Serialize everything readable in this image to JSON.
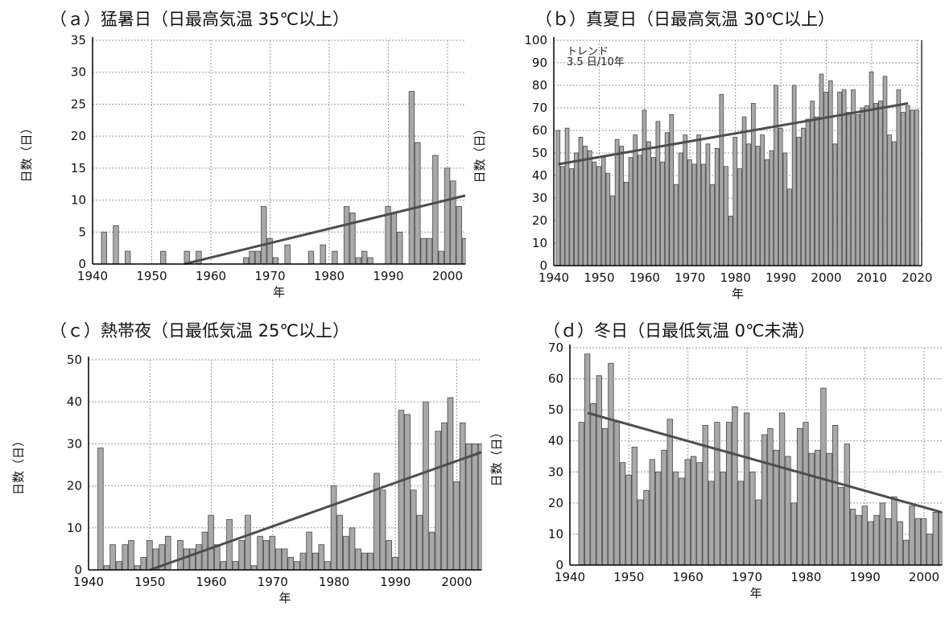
{
  "chart_data": [
    {
      "type": "bar",
      "title": "（ａ）猛暑日（日最高気温 35℃以上）",
      "xlabel": "年",
      "ylabel": "日数（日）",
      "xlim": [
        1940,
        2003
      ],
      "ylim": [
        0,
        35
      ],
      "xticks": [
        1940,
        1950,
        1960,
        1970,
        1980,
        1990,
        2000
      ],
      "yticks": [
        0,
        5,
        10,
        15,
        20,
        25,
        30,
        35
      ],
      "grid": true,
      "x": [
        1942,
        1944,
        1946,
        1952,
        1956,
        1958,
        1966,
        1967,
        1968,
        1969,
        1970,
        1971,
        1973,
        1977,
        1979,
        1981,
        1983,
        1984,
        1985,
        1986,
        1987,
        1990,
        1991,
        1992,
        1994,
        1995,
        1996,
        1997,
        1998,
        1999,
        2000,
        2001,
        2002,
        2003
      ],
      "values": [
        5,
        6,
        2,
        2,
        2,
        2,
        1,
        2,
        2,
        9,
        4,
        1,
        3,
        2,
        3,
        2,
        9,
        8,
        1,
        2,
        1,
        9,
        8,
        5,
        27,
        19,
        4,
        4,
        17,
        2,
        15,
        13,
        9,
        4
      ],
      "trend": {
        "x": [
          1955.5,
          2003
        ],
        "y": [
          0,
          10.7
        ]
      }
    },
    {
      "type": "bar",
      "title": "（ｂ）真夏日（日最高気温 30℃以上）",
      "xlabel": "年",
      "ylabel": "日数（日）",
      "xlim": [
        1940,
        2021
      ],
      "ylim": [
        0,
        100
      ],
      "xticks": [
        1940,
        1950,
        1960,
        1970,
        1980,
        1990,
        2000,
        2010,
        2020
      ],
      "yticks": [
        0,
        10,
        20,
        30,
        40,
        50,
        60,
        70,
        80,
        90,
        100
      ],
      "grid": true,
      "annotation": [
        "トレンド",
        "3.5 日/10年"
      ],
      "x": [
        1941,
        1942,
        1943,
        1944,
        1945,
        1946,
        1947,
        1948,
        1949,
        1950,
        1951,
        1952,
        1953,
        1954,
        1955,
        1956,
        1957,
        1958,
        1959,
        1960,
        1961,
        1962,
        1963,
        1964,
        1965,
        1966,
        1967,
        1968,
        1969,
        1970,
        1971,
        1972,
        1973,
        1974,
        1975,
        1976,
        1977,
        1978,
        1979,
        1980,
        1981,
        1982,
        1983,
        1984,
        1985,
        1986,
        1987,
        1988,
        1989,
        1990,
        1991,
        1992,
        1993,
        1994,
        1995,
        1996,
        1997,
        1998,
        1999,
        2000,
        2001,
        2002,
        2003,
        2004,
        2005,
        2006,
        2007,
        2008,
        2009,
        2010,
        2011,
        2012,
        2013,
        2014,
        2015,
        2016,
        2017,
        2018,
        2019,
        2020
      ],
      "values": [
        60,
        44,
        61,
        43,
        50,
        57,
        53,
        51,
        46,
        44,
        48,
        41,
        31,
        56,
        53,
        37,
        48,
        58,
        49,
        69,
        55,
        48,
        64,
        46,
        59,
        67,
        36,
        50,
        58,
        47,
        45,
        58,
        45,
        54,
        36,
        52,
        76,
        44,
        22,
        57,
        43,
        66,
        54,
        72,
        53,
        58,
        47,
        51,
        80,
        61,
        50,
        34,
        80,
        57,
        61,
        65,
        73,
        66,
        85,
        77,
        82,
        54,
        77,
        78,
        68,
        78,
        67,
        70,
        71,
        86,
        72,
        73,
        84,
        58,
        55,
        78,
        68,
        71,
        69,
        69
      ],
      "trend": {
        "x": [
          1941,
          2018
        ],
        "y": [
          45,
          72
        ]
      }
    },
    {
      "type": "bar",
      "title": "（ｃ）熱帯夜（日最低気温 25℃以上）",
      "xlabel": "年",
      "ylabel": "日数（日）",
      "xlim": [
        1940,
        2004
      ],
      "ylim": [
        0,
        50
      ],
      "xticks": [
        1940,
        1950,
        1960,
        1970,
        1980,
        1990,
        2000
      ],
      "yticks": [
        0,
        10,
        20,
        30,
        40,
        50
      ],
      "grid": true,
      "x": [
        1942,
        1943,
        1944,
        1945,
        1946,
        1947,
        1948,
        1949,
        1950,
        1951,
        1952,
        1953,
        1955,
        1956,
        1957,
        1958,
        1959,
        1960,
        1961,
        1962,
        1963,
        1964,
        1965,
        1966,
        1967,
        1968,
        1969,
        1970,
        1971,
        1972,
        1973,
        1974,
        1975,
        1976,
        1977,
        1978,
        1979,
        1980,
        1981,
        1982,
        1983,
        1984,
        1985,
        1986,
        1987,
        1988,
        1989,
        1990,
        1991,
        1992,
        1993,
        1994,
        1995,
        1996,
        1997,
        1998,
        1999,
        2000,
        2001,
        2002,
        2003,
        2004
      ],
      "values": [
        29,
        1,
        6,
        2,
        6,
        7,
        1,
        3,
        7,
        5,
        6,
        8,
        7,
        5,
        5,
        6,
        9,
        13,
        6,
        2,
        12,
        2,
        7,
        13,
        1,
        8,
        7,
        8,
        5,
        5,
        3,
        2,
        4,
        9,
        4,
        6,
        2,
        20,
        13,
        8,
        10,
        5,
        4,
        4,
        23,
        19,
        7,
        3,
        38,
        37,
        19,
        13,
        40,
        9,
        33,
        35,
        41,
        21,
        35,
        30,
        30,
        30
      ],
      "trend": {
        "x": [
          1950,
          2004
        ],
        "y": [
          0,
          28
        ]
      }
    },
    {
      "type": "bar",
      "title": "（ｄ）冬日（日最低気温 0℃未満）",
      "xlabel": "年",
      "ylabel": "日数（日）",
      "xlim": [
        1940,
        2003
      ],
      "ylim": [
        0,
        70
      ],
      "xticks": [
        1940,
        1950,
        1960,
        1970,
        1980,
        1990,
        2000
      ],
      "yticks": [
        0,
        10,
        20,
        30,
        40,
        50,
        60,
        70
      ],
      "grid": true,
      "x": [
        1942,
        1943,
        1944,
        1945,
        1946,
        1947,
        1948,
        1949,
        1950,
        1951,
        1952,
        1953,
        1954,
        1955,
        1956,
        1957,
        1958,
        1959,
        1960,
        1961,
        1962,
        1963,
        1964,
        1965,
        1966,
        1967,
        1968,
        1969,
        1970,
        1971,
        1972,
        1973,
        1974,
        1975,
        1976,
        1977,
        1978,
        1979,
        1980,
        1981,
        1982,
        1983,
        1984,
        1985,
        1986,
        1987,
        1988,
        1989,
        1990,
        1991,
        1992,
        1993,
        1994,
        1995,
        1996,
        1997,
        1998,
        1999,
        2000,
        2001,
        2002,
        2003
      ],
      "values": [
        46,
        68,
        52,
        61,
        44,
        65,
        46,
        33,
        29,
        38,
        21,
        24,
        34,
        30,
        37,
        47,
        30,
        28,
        34,
        35,
        33,
        45,
        27,
        46,
        30,
        46,
        51,
        27,
        49,
        30,
        21,
        42,
        44,
        37,
        49,
        35,
        20,
        44,
        46,
        36,
        37,
        57,
        36,
        45,
        25,
        39,
        18,
        16,
        19,
        14,
        16,
        20,
        15,
        22,
        14,
        8,
        19,
        15,
        15,
        10,
        17,
        17
      ],
      "trend": {
        "x": [
          1943,
          2003
        ],
        "y": [
          49,
          17
        ]
      }
    }
  ]
}
